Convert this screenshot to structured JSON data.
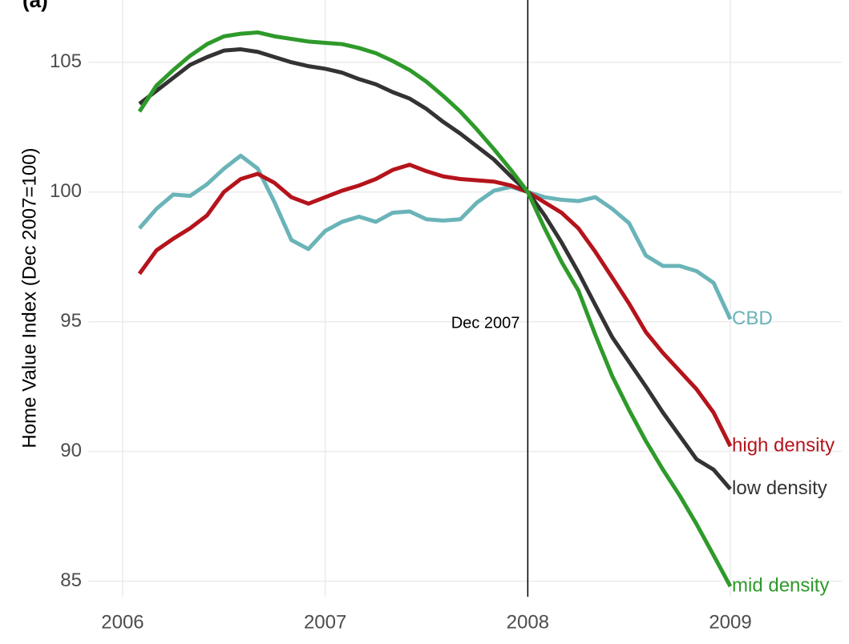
{
  "chart_data": {
    "type": "line",
    "title": "(a)",
    "y_label": "Home Value Index (Dec 2007=100)",
    "x": [
      2006.083,
      2006.167,
      2006.25,
      2006.333,
      2006.417,
      2006.5,
      2006.583,
      2006.667,
      2006.75,
      2006.833,
      2006.917,
      2007,
      2007.083,
      2007.167,
      2007.25,
      2007.333,
      2007.417,
      2007.5,
      2007.583,
      2007.667,
      2007.75,
      2007.833,
      2007.917,
      2008,
      2008.083,
      2008.167,
      2008.25,
      2008.333,
      2008.417,
      2008.5,
      2008.583,
      2008.667,
      2008.75,
      2008.833,
      2008.917,
      2009
    ],
    "series": [
      {
        "name": "CBD",
        "color": "#6ab4b8",
        "values": [
          98.6,
          99.35,
          99.9,
          99.85,
          100.3,
          100.9,
          101.4,
          100.9,
          99.6,
          98.15,
          97.8,
          98.5,
          98.85,
          99.05,
          98.85,
          99.2,
          99.25,
          98.95,
          98.9,
          98.95,
          99.6,
          100.05,
          100.2,
          100,
          99.8,
          99.7,
          99.65,
          99.8,
          99.35,
          98.8,
          97.55,
          97.15,
          97.15,
          96.95,
          96.5,
          95.1
        ]
      },
      {
        "name": "high density",
        "color": "#b5141c",
        "values": [
          96.85,
          97.75,
          98.2,
          98.6,
          99.1,
          100.0,
          100.5,
          100.7,
          100.35,
          99.8,
          99.55,
          99.8,
          100.05,
          100.25,
          100.5,
          100.85,
          101.05,
          100.8,
          100.6,
          100.5,
          100.45,
          100.4,
          100.25,
          100,
          99.6,
          99.2,
          98.6,
          97.7,
          96.7,
          95.7,
          94.6,
          93.8,
          93.1,
          92.4,
          91.5,
          90.2
        ]
      },
      {
        "name": "low density",
        "color": "#333333",
        "values": [
          103.4,
          103.9,
          104.4,
          104.9,
          105.2,
          105.45,
          105.5,
          105.4,
          105.2,
          105.0,
          104.85,
          104.75,
          104.6,
          104.35,
          104.15,
          103.85,
          103.6,
          103.2,
          102.7,
          102.25,
          101.75,
          101.25,
          100.6,
          100,
          99.1,
          98.05,
          96.9,
          95.65,
          94.4,
          93.45,
          92.5,
          91.5,
          90.6,
          89.7,
          89.3,
          88.55
        ]
      },
      {
        "name": "mid density",
        "color": "#2e9a2a",
        "values": [
          103.1,
          104.1,
          104.7,
          105.25,
          105.7,
          106.0,
          106.1,
          106.15,
          106.0,
          105.9,
          105.8,
          105.75,
          105.7,
          105.55,
          105.35,
          105.05,
          104.7,
          104.25,
          103.7,
          103.1,
          102.4,
          101.65,
          100.85,
          100,
          98.6,
          97.3,
          96.2,
          94.5,
          92.9,
          91.6,
          90.4,
          89.3,
          88.3,
          87.2,
          86.0,
          84.8
        ]
      }
    ],
    "vline": 2008,
    "vline_label": "Dec 2007",
    "xlim": [
      2005.83,
      2009.55
    ],
    "ylim": [
      84.4,
      107.4
    ],
    "xticks": [
      2006,
      2007,
      2008,
      2009
    ],
    "yticks": [
      85,
      90,
      95,
      100,
      105
    ],
    "grid": true
  }
}
